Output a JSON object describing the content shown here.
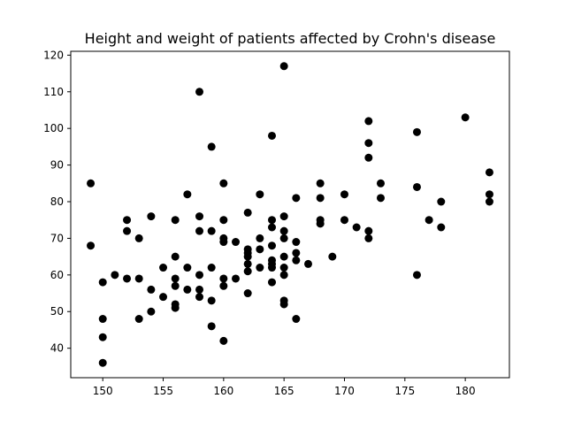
{
  "chart_data": {
    "type": "scatter",
    "title": "Height and weight of patients affected by Crohn's disease",
    "xlabel": "",
    "ylabel": "",
    "xlim": [
      147.35,
      183.65
    ],
    "ylim": [
      31.95,
      121.05
    ],
    "grid": false,
    "x_ticks": [
      150,
      155,
      160,
      165,
      170,
      175,
      180
    ],
    "y_ticks": [
      40,
      50,
      60,
      70,
      80,
      90,
      100,
      110,
      120
    ],
    "marker_color": "#000000",
    "points": [
      [
        149,
        85
      ],
      [
        149,
        68
      ],
      [
        150,
        58
      ],
      [
        150,
        48
      ],
      [
        150,
        43
      ],
      [
        150,
        36
      ],
      [
        151,
        60
      ],
      [
        152,
        75
      ],
      [
        152,
        72
      ],
      [
        152,
        59
      ],
      [
        153,
        70
      ],
      [
        153,
        59
      ],
      [
        153,
        48
      ],
      [
        154,
        76
      ],
      [
        154,
        56
      ],
      [
        154,
        50
      ],
      [
        155,
        62
      ],
      [
        155,
        54
      ],
      [
        156,
        75
      ],
      [
        156,
        65
      ],
      [
        156,
        59
      ],
      [
        156,
        57
      ],
      [
        156,
        52
      ],
      [
        156,
        51
      ],
      [
        157,
        82
      ],
      [
        157,
        62
      ],
      [
        157,
        56
      ],
      [
        158,
        110
      ],
      [
        158,
        76
      ],
      [
        158,
        72
      ],
      [
        158,
        60
      ],
      [
        158,
        56
      ],
      [
        158,
        54
      ],
      [
        159,
        95
      ],
      [
        159,
        72
      ],
      [
        159,
        62
      ],
      [
        159,
        53
      ],
      [
        159,
        46
      ],
      [
        160,
        85
      ],
      [
        160,
        75
      ],
      [
        160,
        70
      ],
      [
        160,
        69
      ],
      [
        160,
        59
      ],
      [
        160,
        57
      ],
      [
        160,
        42
      ],
      [
        161,
        69
      ],
      [
        161,
        59
      ],
      [
        162,
        77
      ],
      [
        162,
        67
      ],
      [
        162,
        66
      ],
      [
        162,
        65
      ],
      [
        162,
        63
      ],
      [
        162,
        61
      ],
      [
        162,
        55
      ],
      [
        163,
        82
      ],
      [
        163,
        70
      ],
      [
        163,
        67
      ],
      [
        163,
        62
      ],
      [
        164,
        98
      ],
      [
        164,
        75
      ],
      [
        164,
        73
      ],
      [
        164,
        68
      ],
      [
        164,
        64
      ],
      [
        164,
        63
      ],
      [
        164,
        62
      ],
      [
        164,
        58
      ],
      [
        165,
        117
      ],
      [
        165,
        76
      ],
      [
        165,
        72
      ],
      [
        165,
        70
      ],
      [
        165,
        65
      ],
      [
        165,
        62
      ],
      [
        165,
        60
      ],
      [
        165,
        53
      ],
      [
        165,
        52
      ],
      [
        166,
        81
      ],
      [
        166,
        69
      ],
      [
        166,
        66
      ],
      [
        166,
        64
      ],
      [
        166,
        48
      ],
      [
        167,
        63
      ],
      [
        168,
        85
      ],
      [
        168,
        81
      ],
      [
        168,
        75
      ],
      [
        168,
        74
      ],
      [
        169,
        65
      ],
      [
        170,
        82
      ],
      [
        170,
        75
      ],
      [
        171,
        73
      ],
      [
        172,
        102
      ],
      [
        172,
        96
      ],
      [
        172,
        92
      ],
      [
        172,
        72
      ],
      [
        172,
        70
      ],
      [
        173,
        85
      ],
      [
        173,
        81
      ],
      [
        176,
        99
      ],
      [
        176,
        84
      ],
      [
        176,
        60
      ],
      [
        177,
        75
      ],
      [
        178,
        80
      ],
      [
        178,
        73
      ],
      [
        180,
        103
      ],
      [
        182,
        88
      ],
      [
        182,
        82
      ],
      [
        182,
        80
      ]
    ]
  }
}
